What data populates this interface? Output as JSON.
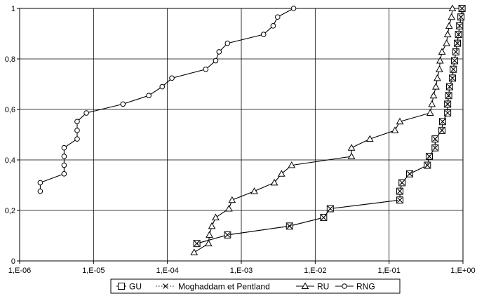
{
  "chart_data": {
    "type": "line",
    "title": "",
    "xlabel": "",
    "ylabel": "",
    "x_scale": "log",
    "xlim": [
      1e-06,
      1
    ],
    "ylim": [
      0,
      1
    ],
    "x_ticks": [
      {
        "value": 1e-06,
        "label": "1,E-06"
      },
      {
        "value": 1e-05,
        "label": "1,E-05"
      },
      {
        "value": 0.0001,
        "label": "1,E-04"
      },
      {
        "value": 0.001,
        "label": "1,E-03"
      },
      {
        "value": 0.01,
        "label": "1,E-02"
      },
      {
        "value": 0.1,
        "label": "1,E-01"
      },
      {
        "value": 1,
        "label": "1,E+00"
      }
    ],
    "y_ticks": [
      {
        "value": 0,
        "label": "0"
      },
      {
        "value": 0.2,
        "label": "0,2"
      },
      {
        "value": 0.4,
        "label": "0,4"
      },
      {
        "value": 0.6,
        "label": "0,6"
      },
      {
        "value": 0.8,
        "label": "0,8"
      },
      {
        "value": 1,
        "label": "1"
      }
    ],
    "grid": true,
    "legend_position": "bottom",
    "series": [
      {
        "name": "GU",
        "marker": "square",
        "line": "solid",
        "points": [
          [
            0.00025,
            0.069
          ],
          [
            0.00065,
            0.103
          ],
          [
            0.0045,
            0.138
          ],
          [
            0.013,
            0.172
          ],
          [
            0.016,
            0.207
          ],
          [
            0.14,
            0.241
          ],
          [
            0.14,
            0.276
          ],
          [
            0.15,
            0.31
          ],
          [
            0.19,
            0.345
          ],
          [
            0.33,
            0.379
          ],
          [
            0.35,
            0.414
          ],
          [
            0.42,
            0.448
          ],
          [
            0.42,
            0.483
          ],
          [
            0.52,
            0.517
          ],
          [
            0.53,
            0.552
          ],
          [
            0.62,
            0.586
          ],
          [
            0.62,
            0.621
          ],
          [
            0.64,
            0.655
          ],
          [
            0.66,
            0.69
          ],
          [
            0.72,
            0.724
          ],
          [
            0.74,
            0.759
          ],
          [
            0.77,
            0.793
          ],
          [
            0.8,
            0.828
          ],
          [
            0.84,
            0.862
          ],
          [
            0.87,
            0.897
          ],
          [
            0.9,
            0.931
          ],
          [
            0.94,
            0.966
          ],
          [
            0.97,
            1.0
          ]
        ]
      },
      {
        "name": "Moghaddam et Pentland",
        "marker": "x",
        "line": "dotted",
        "points": [
          [
            0.00025,
            0.069
          ],
          [
            0.00065,
            0.103
          ],
          [
            0.0045,
            0.138
          ],
          [
            0.013,
            0.172
          ],
          [
            0.016,
            0.207
          ],
          [
            0.14,
            0.241
          ],
          [
            0.14,
            0.276
          ],
          [
            0.15,
            0.31
          ],
          [
            0.19,
            0.345
          ],
          [
            0.33,
            0.379
          ],
          [
            0.35,
            0.414
          ],
          [
            0.42,
            0.448
          ],
          [
            0.42,
            0.483
          ],
          [
            0.52,
            0.517
          ],
          [
            0.53,
            0.552
          ],
          [
            0.62,
            0.586
          ],
          [
            0.62,
            0.621
          ],
          [
            0.64,
            0.655
          ],
          [
            0.66,
            0.69
          ],
          [
            0.72,
            0.724
          ],
          [
            0.74,
            0.759
          ],
          [
            0.77,
            0.793
          ],
          [
            0.8,
            0.828
          ],
          [
            0.84,
            0.862
          ],
          [
            0.87,
            0.897
          ],
          [
            0.9,
            0.931
          ],
          [
            0.94,
            0.966
          ],
          [
            0.97,
            1.0
          ]
        ]
      },
      {
        "name": "RU",
        "marker": "triangle",
        "line": "solid",
        "points": [
          [
            0.00023,
            0.034
          ],
          [
            0.00036,
            0.069
          ],
          [
            0.00037,
            0.103
          ],
          [
            0.0004,
            0.138
          ],
          [
            0.00045,
            0.172
          ],
          [
            0.00068,
            0.207
          ],
          [
            0.00075,
            0.241
          ],
          [
            0.0015,
            0.276
          ],
          [
            0.0028,
            0.31
          ],
          [
            0.0035,
            0.345
          ],
          [
            0.0048,
            0.379
          ],
          [
            0.031,
            0.414
          ],
          [
            0.031,
            0.448
          ],
          [
            0.055,
            0.483
          ],
          [
            0.12,
            0.517
          ],
          [
            0.14,
            0.552
          ],
          [
            0.36,
            0.586
          ],
          [
            0.38,
            0.621
          ],
          [
            0.4,
            0.655
          ],
          [
            0.43,
            0.69
          ],
          [
            0.45,
            0.724
          ],
          [
            0.48,
            0.759
          ],
          [
            0.49,
            0.793
          ],
          [
            0.52,
            0.828
          ],
          [
            0.6,
            0.862
          ],
          [
            0.62,
            0.897
          ],
          [
            0.65,
            0.931
          ],
          [
            0.7,
            0.966
          ],
          [
            0.72,
            1.0
          ]
        ]
      },
      {
        "name": "RNG",
        "marker": "circle",
        "line": "solid",
        "points": [
          [
            1.9e-06,
            0.276
          ],
          [
            1.9e-06,
            0.31
          ],
          [
            4e-06,
            0.345
          ],
          [
            4e-06,
            0.379
          ],
          [
            4e-06,
            0.414
          ],
          [
            4e-06,
            0.448
          ],
          [
            6e-06,
            0.483
          ],
          [
            6e-06,
            0.517
          ],
          [
            6e-06,
            0.552
          ],
          [
            8e-06,
            0.586
          ],
          [
            2.5e-05,
            0.621
          ],
          [
            5.6e-05,
            0.655
          ],
          [
            8.5e-05,
            0.69
          ],
          [
            0.000115,
            0.724
          ],
          [
            0.00033,
            0.759
          ],
          [
            0.00045,
            0.793
          ],
          [
            0.0005,
            0.828
          ],
          [
            0.00065,
            0.862
          ],
          [
            0.002,
            0.897
          ],
          [
            0.0027,
            0.931
          ],
          [
            0.0031,
            0.966
          ],
          [
            0.0051,
            1.0
          ]
        ]
      }
    ]
  }
}
